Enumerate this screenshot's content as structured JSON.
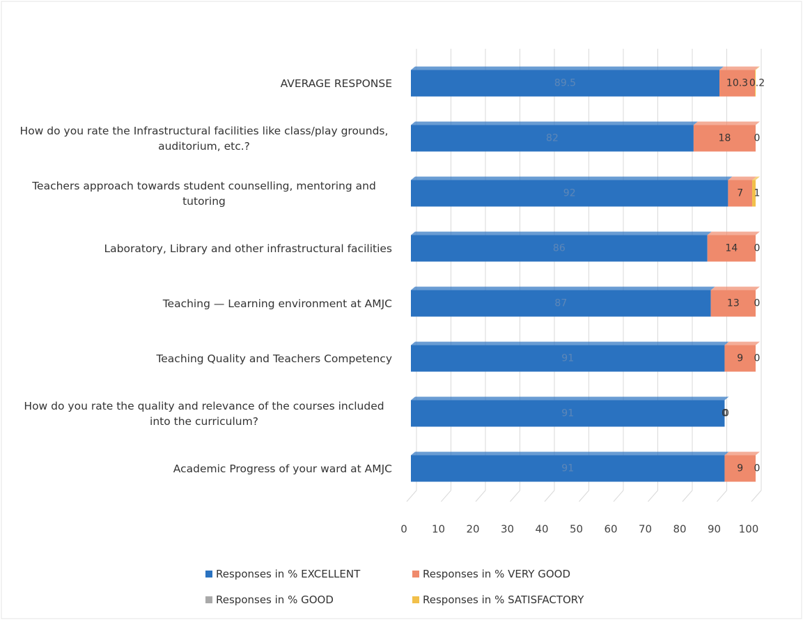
{
  "chart_data": {
    "type": "bar",
    "orientation": "horizontal",
    "stacked": true,
    "categories": [
      "AVERAGE RESPONSE",
      "How do you rate the Infrastructural facilities like class/play grounds, auditorium, etc.?",
      "Teachers approach towards student counselling, mentoring and tutoring",
      "Laboratory, Library and other infrastructural facilities",
      "Teaching — Learning environment at AMJC",
      "Teaching Quality and Teachers Competency",
      "How do you rate the quality and relevance of the courses included into the curriculum?",
      "Academic Progress of your ward at AMJC"
    ],
    "series": [
      {
        "name": "Responses in % EXCELLENT",
        "color": "#2a72c0",
        "values": [
          89.5,
          82,
          92,
          86,
          87,
          91,
          91,
          91
        ]
      },
      {
        "name": "Responses in % VERY GOOD",
        "color": "#ef8a6c",
        "values": [
          10.3,
          18,
          7,
          14,
          13,
          9,
          0,
          9
        ]
      },
      {
        "name": "Responses in % GOOD",
        "color": "#a9a9a9",
        "values": [
          0,
          0,
          0,
          0,
          0,
          0,
          0,
          0
        ]
      },
      {
        "name": "Responses in % SATISFACTORY",
        "color": "#f2c04a",
        "values": [
          0.2,
          0,
          1,
          0,
          0,
          0,
          0,
          0
        ]
      }
    ],
    "xlim": [
      0,
      100
    ],
    "xticks": [
      0,
      10,
      20,
      30,
      40,
      50,
      60,
      70,
      80,
      90,
      100
    ],
    "grid": true
  }
}
